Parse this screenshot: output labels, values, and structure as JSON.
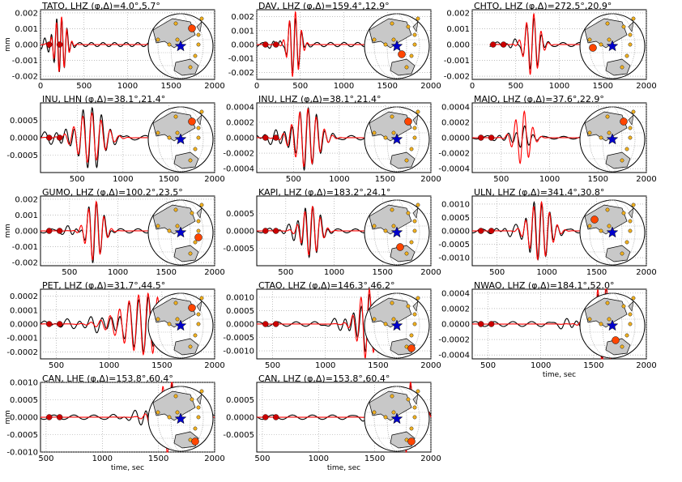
{
  "page": {
    "ylabel": "mm",
    "xlabel": "time, sec"
  },
  "colors": {
    "observed": "#000000",
    "synthetic": "#ff0000",
    "station_dot": "#f0b020",
    "highlight": "#ff4500",
    "source": "#0000cc",
    "land": "#c8c8c8",
    "grid": "#999999"
  },
  "chart_data": [
    {
      "type": "line",
      "title": "TATO, LHZ",
      "angles": "(φ,Δ)=4.0°,5.7°",
      "ylabel": "mm",
      "xlabel": "",
      "xlim": [
        0,
        2000
      ],
      "ylim": [
        -0.0022,
        0.0022
      ],
      "xticks": [
        "0",
        "500",
        "1000",
        "1500",
        "2000"
      ],
      "yticks": [
        "0.002",
        "0.001",
        "0.000",
        "-0.001",
        "-0.002"
      ],
      "t_start": 0,
      "t_end": 1500,
      "wave_center": 230,
      "wave_width": 90,
      "amp": 0.0018,
      "period": 60,
      "syn_ratio": 1.0,
      "dot": "top-right"
    },
    {
      "type": "line",
      "title": "DAV, LHZ",
      "angles": "(φ,Δ)=159.4°,12.9°",
      "ylabel": "",
      "xlabel": "",
      "xlim": [
        0,
        2000
      ],
      "ylim": [
        -0.0025,
        0.0025
      ],
      "xticks": [
        "0",
        "500",
        "1000",
        "1500",
        "2000"
      ],
      "yticks": [
        "0.002",
        "0.001",
        "0.000",
        "-0.001",
        "-0.002"
      ],
      "t_start": 0,
      "t_end": 1500,
      "wave_center": 430,
      "wave_width": 90,
      "amp": 0.0022,
      "period": 70,
      "syn_ratio": 1.1,
      "dot": "center-right"
    },
    {
      "type": "line",
      "title": "CHTO, LHZ",
      "angles": "(φ,Δ)=272.5°,20.9°",
      "ylabel": "",
      "xlabel": "",
      "xlim": [
        0,
        2000
      ],
      "ylim": [
        -0.0022,
        0.0022
      ],
      "xticks": [
        "0",
        "500",
        "1000",
        "1500",
        "2000"
      ],
      "yticks": [
        "0.002",
        "0.001",
        "0.000",
        "-0.001",
        "-0.002"
      ],
      "t_start": 200,
      "t_end": 1500,
      "wave_center": 690,
      "wave_width": 110,
      "amp": 0.0018,
      "period": 85,
      "syn_ratio": 1.1,
      "dot": "left"
    },
    {
      "type": "line",
      "title": "INU, LHN",
      "angles": "(φ,Δ)=38.1°,21.4°",
      "ylabel": "",
      "xlabel": "",
      "xlim": [
        100,
        2000
      ],
      "ylim": [
        -0.001,
        0.001
      ],
      "xticks": [
        "500",
        "1000",
        "1500",
        "2000"
      ],
      "yticks": [
        "0.0005",
        "0.0000",
        "-0.0005"
      ],
      "t_start": 100,
      "t_end": 1500,
      "wave_center": 640,
      "wave_width": 200,
      "amp": 0.0009,
      "period": 100,
      "syn_ratio": 0.8,
      "dot": "top-right"
    },
    {
      "type": "line",
      "title": "INU, LHZ",
      "angles": "(φ,Δ)=38.1°,21.4°",
      "ylabel": "",
      "xlabel": "",
      "xlim": [
        100,
        2000
      ],
      "ylim": [
        -0.00045,
        0.00045
      ],
      "xticks": [
        "500",
        "1000",
        "1500",
        "2000"
      ],
      "yticks": [
        "0.0004",
        "0.0002",
        "0.0000",
        "-0.0002",
        "-0.0004"
      ],
      "t_start": 100,
      "t_end": 1500,
      "wave_center": 640,
      "wave_width": 180,
      "amp": 0.0004,
      "period": 90,
      "syn_ratio": 0.95,
      "dot": "top-right"
    },
    {
      "type": "line",
      "title": "MAJO, LHZ",
      "angles": "(φ,Δ)=37.6°,22.9°",
      "ylabel": "",
      "xlabel": "",
      "xlim": [
        200,
        2000
      ],
      "ylim": [
        -0.00045,
        0.00045
      ],
      "xticks": [
        "500",
        "1000",
        "1500",
        "2000"
      ],
      "yticks": [
        "0.0004",
        "0.0002",
        "0.0000",
        "-0.0002",
        "-0.0004"
      ],
      "t_start": 200,
      "t_end": 1500,
      "wave_center": 720,
      "wave_width": 110,
      "amp": 0.00025,
      "period": 90,
      "syn_ratio": 1.7,
      "dot": "top-right"
    },
    {
      "type": "line",
      "title": "GUMO, LHZ",
      "angles": "(φ,Δ)=100.2°,23.5°",
      "ylabel": "mm",
      "xlabel": "",
      "xlim": [
        200,
        2000
      ],
      "ylim": [
        -0.0022,
        0.0022
      ],
      "xticks": [
        "500",
        "1000",
        "1500",
        "2000"
      ],
      "yticks": [
        "0.002",
        "0.001",
        "0.000",
        "-0.001",
        "-0.002"
      ],
      "t_start": 200,
      "t_end": 1500,
      "wave_center": 760,
      "wave_width": 110,
      "amp": 0.0019,
      "period": 80,
      "syn_ratio": 1.0,
      "dot": "right"
    },
    {
      "type": "line",
      "title": "KAPI, LHZ",
      "angles": "(φ,Δ)=183.2°,24.1°",
      "ylabel": "",
      "xlabel": "",
      "xlim": [
        200,
        2000
      ],
      "ylim": [
        -0.001,
        0.001
      ],
      "xticks": [
        "500",
        "1000",
        "1500",
        "2000"
      ],
      "yticks": [
        "0.0005",
        "0.0000",
        "-0.0005"
      ],
      "t_start": 200,
      "t_end": 1500,
      "wave_center": 760,
      "wave_width": 120,
      "amp": 0.0008,
      "period": 80,
      "syn_ratio": 0.9,
      "dot": "bottom"
    },
    {
      "type": "line",
      "title": "ULN, LHZ",
      "angles": "(φ,Δ)=341.4°,30.8°",
      "ylabel": "",
      "xlabel": "",
      "xlim": [
        250,
        2000
      ],
      "ylim": [
        -0.0013,
        0.0013
      ],
      "xticks": [
        "500",
        "1000",
        "1500",
        "2000"
      ],
      "yticks": [
        "0.0010",
        "0.0005",
        "0.0000",
        "-0.0005",
        "-0.0010"
      ],
      "t_start": 250,
      "t_end": 1500,
      "wave_center": 930,
      "wave_width": 140,
      "amp": 0.0011,
      "period": 80,
      "syn_ratio": 1.0,
      "dot": "top-left"
    },
    {
      "type": "line",
      "title": "PET, LHZ",
      "angles": "(φ,Δ)=31.7°,44.5°",
      "ylabel": "",
      "xlabel": "",
      "xlim": [
        350,
        2000
      ],
      "ylim": [
        -0.00025,
        0.00025
      ],
      "xticks": [
        "500",
        "1000",
        "1500",
        "2000"
      ],
      "yticks": [
        "0.0002",
        "0.0001",
        "0.0000",
        "-0.0001",
        "-0.0002"
      ],
      "t_start": 350,
      "t_end": 1800,
      "wave_center": 1350,
      "wave_width": 300,
      "amp": 0.0002,
      "period": 90,
      "syn_ratio": 1.1,
      "dot": "top-right"
    },
    {
      "type": "line",
      "title": "CTAO, LHZ",
      "angles": "(φ,Δ)=146.3°,46.2°",
      "ylabel": "",
      "xlabel": "",
      "xlim": [
        350,
        2000
      ],
      "ylim": [
        -0.0013,
        0.0013
      ],
      "xticks": [
        "500",
        "1000",
        "1500",
        "2000"
      ],
      "yticks": [
        "0.0010",
        "0.0005",
        "0.0000",
        "-0.0005",
        "-0.0010"
      ],
      "t_start": 350,
      "t_end": 1800,
      "wave_center": 1400,
      "wave_width": 120,
      "amp": 0.0012,
      "period": 80,
      "syn_ratio": 1.1,
      "dot": "bottom-right"
    },
    {
      "type": "line",
      "title": "NWAO, LHZ",
      "angles": "(φ,Δ)=184.1°,52.0°",
      "ylabel": "",
      "xlabel": "time, sec",
      "xlim": [
        350,
        2000
      ],
      "ylim": [
        -0.00045,
        0.00045
      ],
      "xticks": [
        "500",
        "1000",
        "1500",
        "2000"
      ],
      "yticks": [
        "0.0004",
        "0.0002",
        "0.0000",
        "-0.0002",
        "-0.0004"
      ],
      "t_start": 350,
      "t_end": 1900,
      "wave_center": 1600,
      "wave_width": 140,
      "amp": 0.00045,
      "period": 80,
      "syn_ratio": 0.3,
      "dot": "bottom"
    },
    {
      "type": "line",
      "title": "CAN, LHE",
      "angles": "(φ,Δ)=153.8°,60.4°",
      "ylabel": "mm",
      "xlabel": "time, sec",
      "xlim": [
        450,
        2000
      ],
      "ylim": [
        -0.001,
        0.001
      ],
      "xticks": [
        "500",
        "1000",
        "1500",
        "2000"
      ],
      "yticks": [
        "0.0010",
        "0.0005",
        "0.0000",
        "-0.0005",
        "-0.0010"
      ],
      "t_start": 450,
      "t_end": 2000,
      "wave_center": 1600,
      "wave_width": 140,
      "amp": 0.0009,
      "period": 80,
      "syn_ratio": 0.3,
      "dot": "bottom-right"
    },
    {
      "type": "line",
      "title": "CAN, LHZ",
      "angles": "(φ,Δ)=153.8°,60.4°",
      "ylabel": "",
      "xlabel": "time, sec",
      "xlim": [
        450,
        2000
      ],
      "ylim": [
        -0.001,
        0.001
      ],
      "xticks": [
        "500",
        "1000",
        "1500",
        "2000"
      ],
      "yticks": [
        "0.0005",
        "0.0000",
        "-0.0005"
      ],
      "t_start": 450,
      "t_end": 2000,
      "wave_center": 1800,
      "wave_width": 130,
      "amp": 0.0009,
      "period": 80,
      "syn_ratio": 0.25,
      "dot": "bottom-right"
    }
  ]
}
